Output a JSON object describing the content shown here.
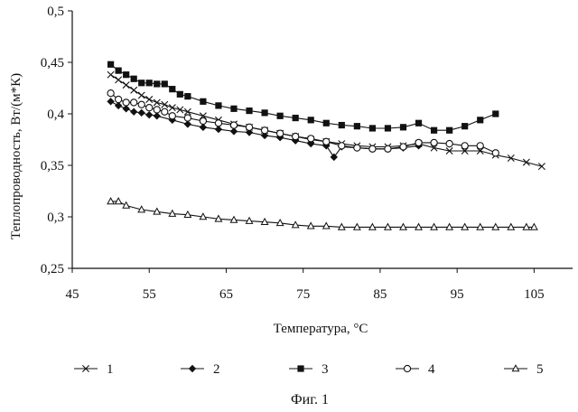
{
  "chart_data": {
    "type": "line",
    "title": "",
    "caption": "Фиг. 1",
    "xlabel": "Температура, °С",
    "ylabel": "Теплопроводность, Вт/(м*К)",
    "xlim": [
      45,
      110
    ],
    "ylim": [
      0.25,
      0.5
    ],
    "xticks": [
      45,
      55,
      65,
      75,
      85,
      95,
      105
    ],
    "yticks": [
      0.25,
      0.3,
      0.35,
      0.4,
      0.45,
      0.5
    ],
    "xtick_labels": [
      "45",
      "55",
      "65",
      "75",
      "85",
      "95",
      "105"
    ],
    "ytick_labels": [
      "0,25",
      "0,3",
      "0,35",
      "0,4",
      "0,45",
      "0,5"
    ],
    "grid": false,
    "legend_position": "bottom",
    "series": [
      {
        "name": "1",
        "marker": "x",
        "x": [
          50,
          51,
          52,
          53,
          54,
          55,
          56,
          57,
          58,
          59,
          60,
          62,
          64,
          66,
          68,
          70,
          72,
          74,
          76,
          78,
          80,
          82,
          84,
          86,
          88,
          90,
          92,
          94,
          96,
          98,
          100,
          102,
          104,
          106
        ],
        "values": [
          0.438,
          0.433,
          0.428,
          0.423,
          0.418,
          0.414,
          0.411,
          0.409,
          0.406,
          0.404,
          0.402,
          0.398,
          0.394,
          0.39,
          0.387,
          0.384,
          0.381,
          0.378,
          0.375,
          0.373,
          0.371,
          0.369,
          0.368,
          0.368,
          0.369,
          0.371,
          0.367,
          0.364,
          0.364,
          0.364,
          0.36,
          0.357,
          0.353,
          0.349
        ]
      },
      {
        "name": "2",
        "marker": "diamond",
        "x": [
          50,
          51,
          52,
          53,
          54,
          55,
          56,
          58,
          60,
          62,
          64,
          66,
          68,
          70,
          72,
          74,
          76,
          78,
          79,
          80,
          82,
          84,
          86,
          88,
          90
        ],
        "values": [
          0.412,
          0.408,
          0.405,
          0.402,
          0.401,
          0.399,
          0.398,
          0.394,
          0.39,
          0.387,
          0.385,
          0.383,
          0.382,
          0.379,
          0.377,
          0.374,
          0.371,
          0.369,
          0.358,
          0.368,
          0.367,
          0.366,
          0.366,
          0.367,
          0.369
        ]
      },
      {
        "name": "3",
        "marker": "square",
        "x": [
          50,
          51,
          52,
          53,
          54,
          55,
          56,
          57,
          58,
          59,
          60,
          62,
          64,
          66,
          68,
          70,
          72,
          74,
          76,
          78,
          80,
          82,
          84,
          86,
          88,
          90,
          92,
          94,
          96,
          98,
          100
        ],
        "values": [
          0.448,
          0.442,
          0.438,
          0.434,
          0.43,
          0.43,
          0.429,
          0.429,
          0.424,
          0.419,
          0.417,
          0.412,
          0.408,
          0.405,
          0.403,
          0.401,
          0.398,
          0.396,
          0.394,
          0.391,
          0.389,
          0.388,
          0.386,
          0.386,
          0.387,
          0.391,
          0.384,
          0.384,
          0.388,
          0.394,
          0.4
        ]
      },
      {
        "name": "4",
        "marker": "circle",
        "x": [
          50,
          51,
          52,
          53,
          54,
          55,
          56,
          57,
          58,
          60,
          62,
          64,
          66,
          68,
          70,
          72,
          74,
          76,
          78,
          80,
          82,
          84,
          86,
          88,
          90,
          92,
          94,
          96,
          98,
          100
        ],
        "values": [
          0.42,
          0.414,
          0.411,
          0.411,
          0.409,
          0.406,
          0.404,
          0.402,
          0.398,
          0.396,
          0.393,
          0.391,
          0.389,
          0.387,
          0.384,
          0.381,
          0.378,
          0.376,
          0.373,
          0.369,
          0.367,
          0.366,
          0.366,
          0.368,
          0.372,
          0.372,
          0.371,
          0.369,
          0.369,
          0.362
        ]
      },
      {
        "name": "5",
        "marker": "triangle",
        "x": [
          50,
          51,
          52,
          54,
          56,
          58,
          60,
          62,
          64,
          66,
          68,
          70,
          72,
          74,
          76,
          78,
          80,
          82,
          84,
          86,
          88,
          90,
          92,
          94,
          96,
          98,
          100,
          102,
          104,
          105
        ],
        "values": [
          0.315,
          0.315,
          0.311,
          0.307,
          0.305,
          0.303,
          0.302,
          0.3,
          0.298,
          0.297,
          0.296,
          0.295,
          0.294,
          0.292,
          0.291,
          0.291,
          0.29,
          0.29,
          0.29,
          0.29,
          0.29,
          0.29,
          0.29,
          0.29,
          0.29,
          0.29,
          0.29,
          0.29,
          0.29,
          0.29
        ]
      }
    ]
  }
}
